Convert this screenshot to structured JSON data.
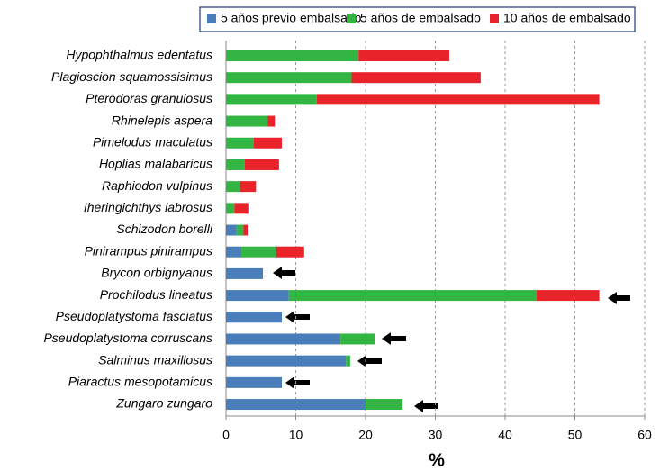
{
  "chart_data": {
    "type": "hbar-stacked",
    "categories": [
      "Hypophthalmus edentatus",
      "Plagioscion squamossisimus",
      "Pterodoras granulosus",
      "Rhinelepis aspera",
      "Pimelodus maculatus",
      "Hoplias malabaricus",
      "Raphiodon vulpinus",
      "Iheringichthys labrosus",
      "Schizodon borelli",
      "Pinirampus pinirampus",
      "Brycon orbignyanus",
      "Prochilodus lineatus",
      "Pseudoplatystoma fasciatus",
      "Pseudoplatystoma corruscans",
      "Salminus maxillosus",
      "Piaractus mesopotamicus",
      "Zungaro zungaro"
    ],
    "series": [
      {
        "name": "5 años previo embalsado",
        "color": "#4a7ebb",
        "values": [
          0,
          0,
          0,
          0,
          0,
          0,
          0,
          0,
          1.5,
          2.2,
          5.3,
          9,
          8,
          16.4,
          17.2,
          8,
          20
        ]
      },
      {
        "name": "5 años de embalsado",
        "color": "#33b543",
        "values": [
          19,
          18,
          13,
          6,
          4,
          2.7,
          2,
          1.2,
          1,
          5,
          0,
          35.5,
          0,
          4.9,
          0.6,
          0,
          5.3
        ]
      },
      {
        "name": "10 años de embalsado",
        "color": "#e8232a",
        "values": [
          13,
          18.5,
          40.5,
          1,
          4,
          4.9,
          2.3,
          2,
          0.6,
          4,
          0,
          9,
          0,
          0,
          0,
          0,
          0
        ]
      }
    ],
    "xlabel": "%",
    "xlim": [
      0,
      60
    ],
    "xticks": [
      0,
      10,
      20,
      30,
      40,
      50,
      60
    ],
    "grid": true
  }
}
